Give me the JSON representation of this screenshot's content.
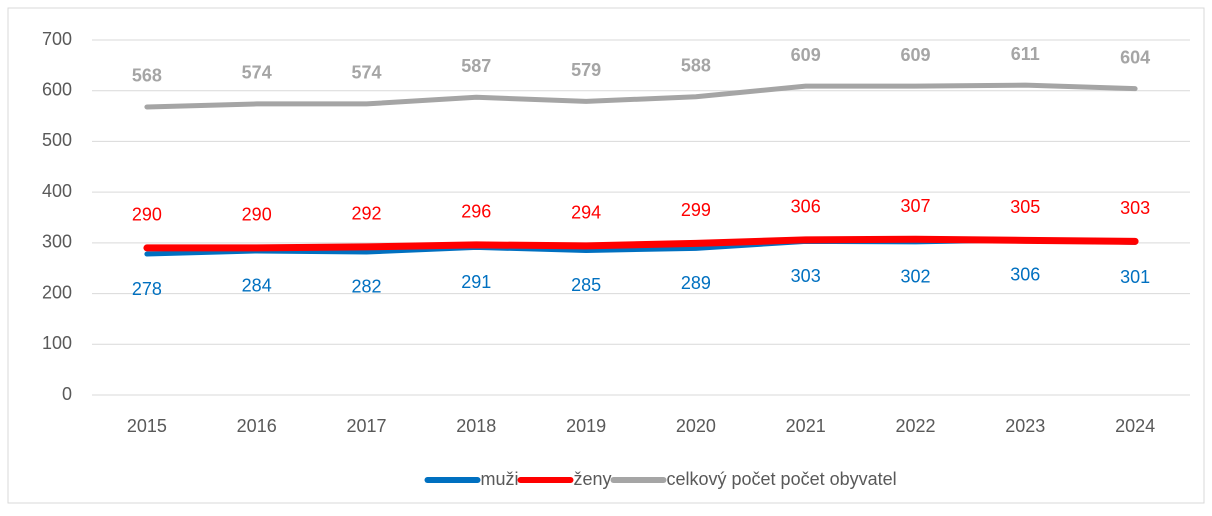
{
  "chart_data": {
    "type": "line",
    "categories": [
      "2015",
      "2016",
      "2017",
      "2018",
      "2019",
      "2020",
      "2021",
      "2022",
      "2023",
      "2024"
    ],
    "series": [
      {
        "name": "muži",
        "color": "#0070c0",
        "values": [
          278,
          284,
          282,
          291,
          285,
          289,
          303,
          302,
          306,
          301
        ]
      },
      {
        "name": "ženy",
        "color": "#ff0000",
        "values": [
          290,
          290,
          292,
          296,
          294,
          299,
          306,
          307,
          305,
          303
        ]
      },
      {
        "name": "celkový počet počet obyvatel",
        "color": "#a5a5a5",
        "values": [
          568,
          574,
          574,
          587,
          579,
          588,
          609,
          609,
          611,
          604
        ]
      }
    ],
    "ylim": [
      0,
      700
    ],
    "yticks": [
      0,
      100,
      200,
      300,
      400,
      500,
      600,
      700
    ],
    "grid": true,
    "legend": "bottom"
  }
}
